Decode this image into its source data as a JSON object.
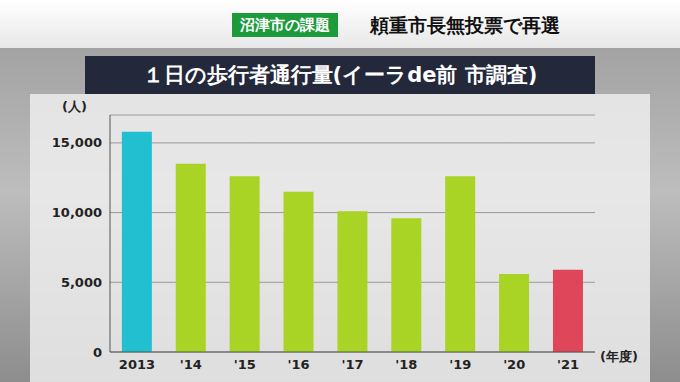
{
  "chart_data": {
    "type": "bar",
    "annotations": [
      "沼津市の課題",
      "頼重市長無投票で再選"
    ],
    "title": "１日の歩行者通行量(イーラde前 市調査)",
    "y_label": "(人)",
    "x_label": "(年度)",
    "categories": [
      "2013",
      "'14",
      "'15",
      "'16",
      "'17",
      "'18",
      "'19",
      "'20",
      "'21"
    ],
    "values": [
      15800,
      13500,
      12600,
      11500,
      10100,
      9600,
      12600,
      5600,
      5900
    ],
    "colors": [
      "#22bfd0",
      "#a9d325",
      "#a9d325",
      "#a9d325",
      "#a9d325",
      "#a9d325",
      "#a9d325",
      "#a9d325",
      "#e0465a"
    ],
    "ylim": [
      0,
      17000
    ],
    "yticks": [
      0,
      {
        "value": 5000,
        "label": "5,000"
      },
      {
        "value": 10000,
        "label": "10,000"
      },
      {
        "value": 15000,
        "label": "15,000"
      }
    ],
    "grid": true
  }
}
